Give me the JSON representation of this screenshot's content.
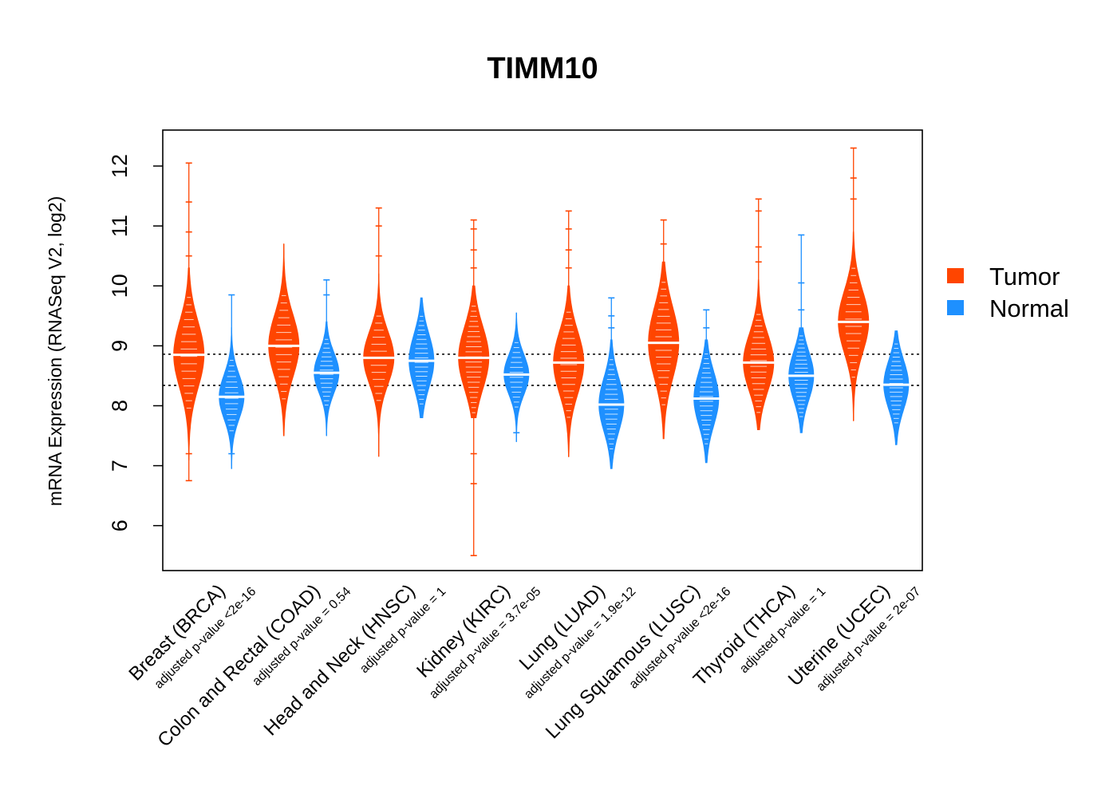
{
  "chart_data": {
    "type": "violin",
    "title": "TIMM10",
    "ylabel": "mRNA Expression (RNASeq V2, log2)",
    "ylim": [
      5.25,
      12.6
    ],
    "yticks": [
      "6",
      "7",
      "8",
      "9",
      "10",
      "11",
      "12"
    ],
    "reference_lines": [
      8.86,
      8.34
    ],
    "legend": {
      "position": "right",
      "entries": [
        {
          "name": "Tumor",
          "color": "#ff4500"
        },
        {
          "name": "Normal",
          "color": "#1e90ff"
        }
      ]
    },
    "categories": [
      {
        "label": "Breast (BRCA)",
        "pvalue": "adjusted p-value <2e-16"
      },
      {
        "label": "Colon and Rectal (COAD)",
        "pvalue": "adjusted p-value = 0.54"
      },
      {
        "label": "Head and Neck (HNSC)",
        "pvalue": "adjusted p-value = 1"
      },
      {
        "label": "Kidney (KIRC)",
        "pvalue": "adjusted p-value = 3.7e-05"
      },
      {
        "label": "Lung (LUAD)",
        "pvalue": "adjusted p-value = 1.9e-12"
      },
      {
        "label": "Lung Squamous (LUSC)",
        "pvalue": "adjusted p-value <2e-16"
      },
      {
        "label": "Thyroid (THCA)",
        "pvalue": "adjusted p-value = 1"
      },
      {
        "label": "Uterine (UCEC)",
        "pvalue": "adjusted p-value = 2e-07"
      }
    ],
    "series": [
      {
        "name": "Tumor",
        "color": "#ff4500",
        "groups": [
          {
            "median": 8.85,
            "q1": 8.45,
            "q3": 9.2,
            "min": 7.1,
            "max": 10.3,
            "width": 0.55,
            "outliers": [
              6.75,
              7.2,
              10.5,
              10.9,
              11.4,
              12.05
            ]
          },
          {
            "median": 9.0,
            "q1": 8.65,
            "q3": 9.35,
            "min": 7.5,
            "max": 10.7,
            "width": 0.55,
            "outliers": []
          },
          {
            "median": 8.8,
            "q1": 8.5,
            "q3": 9.1,
            "min": 7.15,
            "max": 10.2,
            "width": 0.55,
            "outliers": [
              10.5,
              11.0,
              11.3
            ]
          },
          {
            "median": 8.8,
            "q1": 8.45,
            "q3": 9.15,
            "min": 7.8,
            "max": 10.0,
            "width": 0.55,
            "outliers": [
              7.2,
              6.7,
              5.5,
              10.3,
              10.6,
              10.95,
              11.1
            ]
          },
          {
            "median": 8.72,
            "q1": 8.35,
            "q3": 9.05,
            "min": 7.15,
            "max": 10.0,
            "width": 0.55,
            "outliers": [
              10.3,
              10.6,
              10.95,
              11.25
            ]
          },
          {
            "median": 9.05,
            "q1": 8.6,
            "q3": 9.4,
            "min": 7.45,
            "max": 10.4,
            "width": 0.55,
            "outliers": [
              10.7,
              11.1
            ]
          },
          {
            "median": 8.72,
            "q1": 8.4,
            "q3": 9.05,
            "min": 7.6,
            "max": 10.1,
            "width": 0.55,
            "outliers": [
              10.4,
              10.65,
              11.25,
              11.45
            ]
          },
          {
            "median": 9.4,
            "q1": 9.05,
            "q3": 9.75,
            "min": 7.75,
            "max": 10.9,
            "width": 0.55,
            "outliers": [
              11.45,
              11.8,
              12.3
            ]
          }
        ]
      },
      {
        "name": "Normal",
        "color": "#1e90ff",
        "groups": [
          {
            "median": 8.15,
            "q1": 7.9,
            "q3": 8.4,
            "min": 6.95,
            "max": 9.3,
            "width": 0.45,
            "outliers": [
              7.2,
              9.85
            ]
          },
          {
            "median": 8.55,
            "q1": 8.3,
            "q3": 8.75,
            "min": 7.5,
            "max": 9.4,
            "width": 0.45,
            "outliers": [
              9.85,
              10.1
            ]
          },
          {
            "median": 8.75,
            "q1": 8.45,
            "q3": 9.05,
            "min": 7.8,
            "max": 9.8,
            "width": 0.45,
            "outliers": []
          },
          {
            "median": 8.52,
            "q1": 8.3,
            "q3": 8.75,
            "min": 7.4,
            "max": 9.55,
            "width": 0.45,
            "outliers": [
              7.55
            ]
          },
          {
            "median": 8.02,
            "q1": 7.7,
            "q3": 8.3,
            "min": 6.95,
            "max": 9.1,
            "width": 0.45,
            "outliers": [
              9.3,
              9.5,
              9.8
            ]
          },
          {
            "median": 8.12,
            "q1": 7.8,
            "q3": 8.4,
            "min": 7.05,
            "max": 9.1,
            "width": 0.45,
            "outliers": [
              9.3,
              9.6
            ]
          },
          {
            "median": 8.5,
            "q1": 8.2,
            "q3": 8.75,
            "min": 7.55,
            "max": 9.3,
            "width": 0.45,
            "outliers": [
              9.6,
              10.05,
              10.85
            ]
          },
          {
            "median": 8.35,
            "q1": 8.05,
            "q3": 8.6,
            "min": 7.35,
            "max": 9.25,
            "width": 0.45,
            "outliers": []
          }
        ]
      }
    ]
  }
}
